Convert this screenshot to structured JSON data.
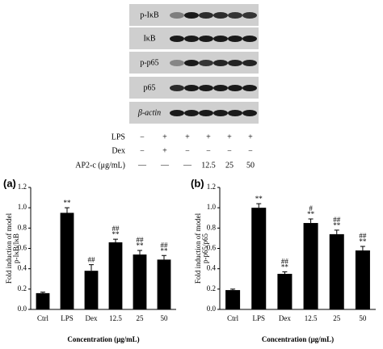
{
  "blot": {
    "rows": [
      "p-IκB",
      "IκB",
      "p-p65",
      "p65",
      "β-actin"
    ]
  },
  "treatments": [
    {
      "label": "LPS",
      "marks": [
        "−",
        "+",
        "+",
        "+",
        "+",
        "+"
      ]
    },
    {
      "label": "Dex",
      "marks": [
        "−",
        "+",
        "−",
        "−",
        "−",
        "−"
      ]
    },
    {
      "label": "AP2-c (μg/mL)",
      "marks": [
        "—",
        "—",
        "—",
        "12.5",
        "25",
        "50"
      ]
    }
  ],
  "chart_data": [
    {
      "type": "bar",
      "panel_label": "(a)",
      "ylabel": [
        "Fold induction of model",
        "p-IκB/IκB"
      ],
      "xlabel": "Concentration (μg/mL)",
      "categories": [
        "Ctrl",
        "LPS",
        "Dex",
        "12.5",
        "25",
        "50"
      ],
      "values": [
        0.16,
        0.95,
        0.38,
        0.66,
        0.54,
        0.49
      ],
      "errors": [
        0.01,
        0.05,
        0.06,
        0.03,
        0.04,
        0.04
      ],
      "annotations": [
        [],
        [
          "**"
        ],
        [
          "##"
        ],
        [
          "##",
          "**"
        ],
        [
          "##",
          "**"
        ],
        [
          "##",
          "**"
        ]
      ],
      "color": "#000000",
      "ylim": [
        0,
        1.2
      ],
      "yticks": [
        {
          "value": 0,
          "label": "0.0"
        },
        {
          "value": 0.2,
          "label": "0.2"
        },
        {
          "value": 0.4,
          "label": "0.4"
        },
        {
          "value": 0.6,
          "label": "0.6"
        },
        {
          "value": 0.8,
          "label": "0.8"
        },
        {
          "value": 1,
          "label": "1.0"
        },
        {
          "value": 1.2,
          "label": "1.2"
        }
      ]
    },
    {
      "type": "bar",
      "panel_label": "(b)",
      "ylabel": [
        "Fold induction of model",
        "p-p65/p65"
      ],
      "xlabel": "Concentration (μg/mL)",
      "categories": [
        "Ctrl",
        "LPS",
        "Dex",
        "12.5",
        "25",
        "50"
      ],
      "values": [
        0.19,
        1.0,
        0.35,
        0.85,
        0.74,
        0.58
      ],
      "errors": [
        0.01,
        0.04,
        0.02,
        0.04,
        0.04,
        0.04
      ],
      "annotations": [
        [],
        [
          "**"
        ],
        [
          "##",
          "**"
        ],
        [
          "#",
          "**"
        ],
        [
          "##",
          "**"
        ],
        [
          "##",
          "**"
        ]
      ],
      "color": "#000000",
      "ylim": [
        0,
        1.2
      ],
      "yticks": [
        {
          "value": 0,
          "label": "0.0"
        },
        {
          "value": 0.2,
          "label": "0.2"
        },
        {
          "value": 0.4,
          "label": "0.4"
        },
        {
          "value": 0.6,
          "label": "0.6"
        },
        {
          "value": 0.8,
          "label": "0.8"
        },
        {
          "value": 1,
          "label": "1.0"
        },
        {
          "value": 1.2,
          "label": "1.2"
        }
      ]
    }
  ]
}
